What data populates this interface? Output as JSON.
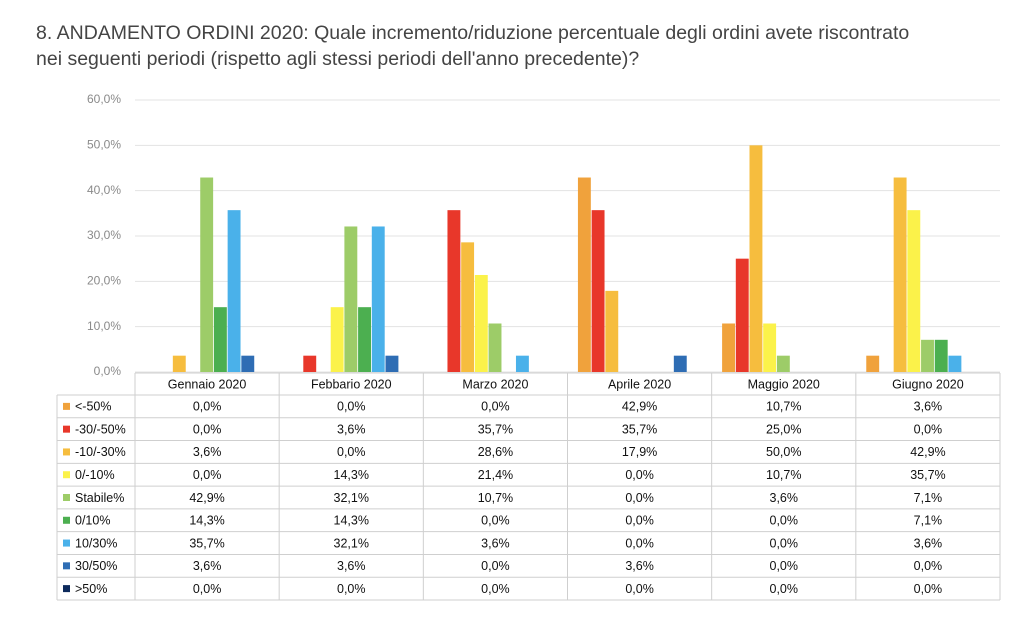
{
  "chart_data": {
    "type": "bar",
    "title": "8. ANDAMENTO ORDINI 2020: Quale incremento/riduzione percentuale degli ordini avete riscontrato nei seguenti periodi (rispetto agli stessi periodi dell'anno precedente)?",
    "categories": [
      "Gennaio 2020",
      "Febbario 2020",
      "Marzo 2020",
      "Aprile 2020",
      "Maggio 2020",
      "Giugno 2020"
    ],
    "series": [
      {
        "name": "<-50%",
        "color": "#f0a23c",
        "values": [
          0,
          0,
          0,
          42.9,
          10.7,
          3.6
        ],
        "value_labels": [
          "0,0%",
          "0,0%",
          "0,0%",
          "42,9%",
          "10,7%",
          "3,6%"
        ]
      },
      {
        "name": "-30/-50%",
        "color": "#e8372a",
        "values": [
          0,
          3.6,
          35.7,
          35.7,
          25.0,
          0
        ],
        "value_labels": [
          "0,0%",
          "3,6%",
          "35,7%",
          "35,7%",
          "25,0%",
          "0,0%"
        ]
      },
      {
        "name": "-10/-30%",
        "color": "#f6bd3e",
        "values": [
          3.6,
          0,
          28.6,
          17.9,
          50.0,
          42.9
        ],
        "value_labels": [
          "3,6%",
          "0,0%",
          "28,6%",
          "17,9%",
          "50,0%",
          "42,9%"
        ]
      },
      {
        "name": "0/-10%",
        "color": "#fbf24a",
        "values": [
          0,
          14.3,
          21.4,
          0,
          10.7,
          35.7
        ],
        "value_labels": [
          "0,0%",
          "14,3%",
          "21,4%",
          "0,0%",
          "10,7%",
          "35,7%"
        ]
      },
      {
        "name": "Stabile%",
        "color": "#9dcc68",
        "values": [
          42.9,
          32.1,
          10.7,
          0,
          3.6,
          7.1
        ],
        "value_labels": [
          "42,9%",
          "32,1%",
          "10,7%",
          "0,0%",
          "3,6%",
          "7,1%"
        ]
      },
      {
        "name": "0/10%",
        "color": "#4caf50",
        "values": [
          14.3,
          14.3,
          0,
          0,
          0,
          7.1
        ],
        "value_labels": [
          "14,3%",
          "14,3%",
          "0,0%",
          "0,0%",
          "0,0%",
          "7,1%"
        ]
      },
      {
        "name": "10/30%",
        "color": "#4ab1ea",
        "values": [
          35.7,
          32.1,
          3.6,
          0,
          0,
          3.6
        ],
        "value_labels": [
          "35,7%",
          "32,1%",
          "3,6%",
          "0,0%",
          "0,0%",
          "3,6%"
        ]
      },
      {
        "name": "30/50%",
        "color": "#2e6db4",
        "values": [
          3.6,
          3.6,
          0,
          3.6,
          0,
          0
        ],
        "value_labels": [
          "3,6%",
          "3,6%",
          "0,0%",
          "3,6%",
          "0,0%",
          "0,0%"
        ]
      },
      {
        "name": ">50%",
        "color": "#0d2a5c",
        "values": [
          0,
          0,
          0,
          0,
          0,
          0
        ],
        "value_labels": [
          "0,0%",
          "0,0%",
          "0,0%",
          "0,0%",
          "0,0%",
          "0,0%"
        ]
      }
    ],
    "ylim": [
      0,
      60
    ],
    "yticks": [
      {
        "value": 0,
        "label": "0,0%"
      },
      {
        "value": 10,
        "label": "10,0%"
      },
      {
        "value": 20,
        "label": "20,0%"
      },
      {
        "value": 30,
        "label": "30,0%"
      },
      {
        "value": 40,
        "label": "40,0%"
      },
      {
        "value": 50,
        "label": "50,0%"
      },
      {
        "value": 60,
        "label": "60,0%"
      }
    ],
    "grid": true
  }
}
